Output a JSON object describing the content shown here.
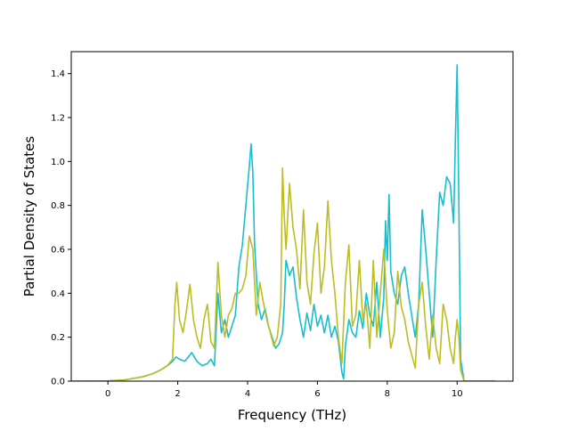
{
  "chart_data": {
    "type": "line",
    "title": "",
    "xlabel": "Frequency (THz)",
    "ylabel": "Partial Density of States",
    "xlim": [
      -1.05,
      11.6
    ],
    "ylim": [
      0.0,
      1.5
    ],
    "xticks": [
      0,
      2,
      4,
      6,
      8,
      10
    ],
    "xtick_labels": [
      "0",
      "2",
      "4",
      "6",
      "8",
      "10"
    ],
    "yticks": [
      0.0,
      0.2,
      0.4,
      0.6,
      0.8,
      1.0,
      1.2,
      1.4
    ],
    "ytick_labels": [
      "0.0",
      "0.2",
      "0.4",
      "0.6",
      "0.8",
      "1.0",
      "1.2",
      "1.4"
    ],
    "grid": false,
    "legend": "none",
    "series": [
      {
        "color": "#17becf",
        "x": [
          -1.05,
          -0.5,
          0.0,
          0.5,
          1.0,
          1.3,
          1.5,
          1.7,
          1.85,
          1.95,
          2.05,
          2.2,
          2.3,
          2.4,
          2.55,
          2.7,
          2.85,
          2.95,
          3.05,
          3.15,
          3.25,
          3.35,
          3.45,
          3.55,
          3.65,
          3.75,
          3.85,
          3.95,
          4.05,
          4.1,
          4.15,
          4.2,
          4.3,
          4.4,
          4.5,
          4.6,
          4.7,
          4.8,
          4.9,
          5.0,
          5.05,
          5.1,
          5.2,
          5.3,
          5.4,
          5.5,
          5.6,
          5.7,
          5.8,
          5.9,
          6.0,
          6.1,
          6.2,
          6.3,
          6.4,
          6.5,
          6.6,
          6.7,
          6.75,
          6.8,
          6.9,
          7.0,
          7.1,
          7.2,
          7.3,
          7.4,
          7.5,
          7.6,
          7.7,
          7.8,
          7.9,
          7.95,
          8.0,
          8.05,
          8.1,
          8.2,
          8.3,
          8.4,
          8.5,
          8.6,
          8.7,
          8.8,
          8.9,
          9.0,
          9.1,
          9.2,
          9.3,
          9.4,
          9.5,
          9.6,
          9.7,
          9.8,
          9.9,
          9.95,
          10.0,
          10.05,
          10.1,
          10.2,
          10.5,
          11.1
        ],
        "y": [
          0.0,
          0.0,
          0.001,
          0.006,
          0.02,
          0.035,
          0.05,
          0.07,
          0.09,
          0.11,
          0.1,
          0.09,
          0.11,
          0.13,
          0.09,
          0.07,
          0.08,
          0.1,
          0.07,
          0.4,
          0.22,
          0.28,
          0.2,
          0.25,
          0.3,
          0.52,
          0.62,
          0.8,
          0.98,
          1.08,
          0.95,
          0.62,
          0.35,
          0.28,
          0.33,
          0.25,
          0.2,
          0.15,
          0.17,
          0.22,
          0.35,
          0.55,
          0.48,
          0.52,
          0.38,
          0.28,
          0.2,
          0.31,
          0.23,
          0.35,
          0.25,
          0.3,
          0.22,
          0.3,
          0.2,
          0.25,
          0.18,
          0.04,
          0.01,
          0.16,
          0.28,
          0.22,
          0.2,
          0.32,
          0.24,
          0.4,
          0.3,
          0.25,
          0.45,
          0.2,
          0.38,
          0.73,
          0.55,
          0.85,
          0.5,
          0.4,
          0.35,
          0.48,
          0.52,
          0.4,
          0.3,
          0.2,
          0.35,
          0.78,
          0.6,
          0.4,
          0.2,
          0.55,
          0.86,
          0.8,
          0.93,
          0.9,
          0.72,
          1.1,
          1.44,
          0.8,
          0.1,
          0.0,
          0.0,
          0.0
        ]
      },
      {
        "color": "#bcbd22",
        "x": [
          -1.05,
          -0.5,
          0.0,
          0.5,
          1.0,
          1.3,
          1.5,
          1.7,
          1.85,
          1.92,
          1.97,
          2.05,
          2.15,
          2.25,
          2.35,
          2.45,
          2.55,
          2.65,
          2.75,
          2.85,
          2.95,
          3.05,
          3.15,
          3.25,
          3.35,
          3.45,
          3.55,
          3.65,
          3.75,
          3.85,
          3.95,
          4.05,
          4.15,
          4.25,
          4.35,
          4.45,
          4.55,
          4.65,
          4.75,
          4.85,
          4.95,
          5.0,
          5.05,
          5.1,
          5.2,
          5.3,
          5.4,
          5.5,
          5.6,
          5.7,
          5.8,
          5.9,
          6.0,
          6.1,
          6.2,
          6.3,
          6.4,
          6.5,
          6.6,
          6.7,
          6.8,
          6.9,
          7.0,
          7.1,
          7.2,
          7.3,
          7.4,
          7.5,
          7.6,
          7.7,
          7.8,
          7.9,
          8.0,
          8.1,
          8.2,
          8.3,
          8.4,
          8.5,
          8.6,
          8.7,
          8.8,
          8.9,
          9.0,
          9.1,
          9.2,
          9.3,
          9.4,
          9.5,
          9.6,
          9.7,
          9.8,
          9.9,
          9.95,
          10.0,
          10.05,
          10.1,
          10.2,
          10.5,
          11.1
        ],
        "y": [
          0.0,
          0.0,
          0.001,
          0.006,
          0.02,
          0.035,
          0.05,
          0.07,
          0.1,
          0.35,
          0.45,
          0.28,
          0.22,
          0.32,
          0.44,
          0.28,
          0.2,
          0.15,
          0.28,
          0.35,
          0.18,
          0.15,
          0.54,
          0.3,
          0.2,
          0.3,
          0.33,
          0.4,
          0.4,
          0.42,
          0.48,
          0.66,
          0.6,
          0.3,
          0.45,
          0.36,
          0.28,
          0.22,
          0.16,
          0.2,
          0.35,
          0.97,
          0.75,
          0.6,
          0.9,
          0.7,
          0.6,
          0.42,
          0.78,
          0.45,
          0.35,
          0.58,
          0.72,
          0.4,
          0.52,
          0.82,
          0.55,
          0.4,
          0.2,
          0.08,
          0.45,
          0.62,
          0.25,
          0.3,
          0.55,
          0.28,
          0.35,
          0.15,
          0.55,
          0.2,
          0.4,
          0.6,
          0.32,
          0.15,
          0.22,
          0.5,
          0.34,
          0.28,
          0.18,
          0.12,
          0.06,
          0.35,
          0.45,
          0.25,
          0.1,
          0.3,
          0.15,
          0.08,
          0.35,
          0.28,
          0.15,
          0.08,
          0.2,
          0.28,
          0.2,
          0.05,
          0.0,
          0.0,
          0.0
        ]
      }
    ]
  }
}
